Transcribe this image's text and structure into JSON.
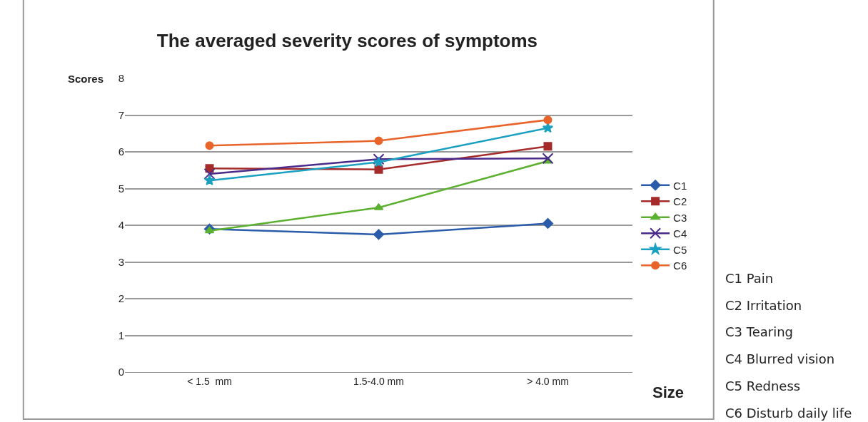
{
  "chart_data": {
    "type": "line",
    "title": "The averaged severity scores of symptoms",
    "xlabel": "Size",
    "ylabel": "Scores",
    "categories": [
      "< 1.5  mm",
      "1.5-4.0 mm",
      "> 4.0 mm"
    ],
    "series": [
      {
        "name": "C1",
        "color": "#2a5caa",
        "marker": "diamond",
        "values": [
          3.9,
          3.75,
          4.05
        ]
      },
      {
        "name": "C2",
        "color": "#a52a2a",
        "marker": "square",
        "values": [
          5.55,
          5.52,
          6.15
        ]
      },
      {
        "name": "C3",
        "color": "#5cb030",
        "marker": "triangle",
        "values": [
          3.85,
          4.48,
          5.75
        ]
      },
      {
        "name": "C4",
        "color": "#4a2a8a",
        "marker": "cross",
        "values": [
          5.4,
          5.8,
          5.82
        ]
      },
      {
        "name": "C5",
        "color": "#1aa0c0",
        "marker": "star",
        "values": [
          5.22,
          5.72,
          6.65
        ]
      },
      {
        "name": "C6",
        "color": "#e8642a",
        "marker": "circle",
        "values": [
          6.17,
          6.3,
          6.87
        ]
      }
    ],
    "ylim": [
      0,
      8
    ],
    "yticks": [
      0,
      1,
      2,
      3,
      4,
      5,
      6,
      7,
      8
    ],
    "grid": "y",
    "legend": "right",
    "annotations": [
      "C1 Pain",
      "C2 Irritation",
      "C3 Tearing",
      "C4 Blurred vision",
      "C5 Redness",
      "C6 Disturb daily life"
    ]
  }
}
